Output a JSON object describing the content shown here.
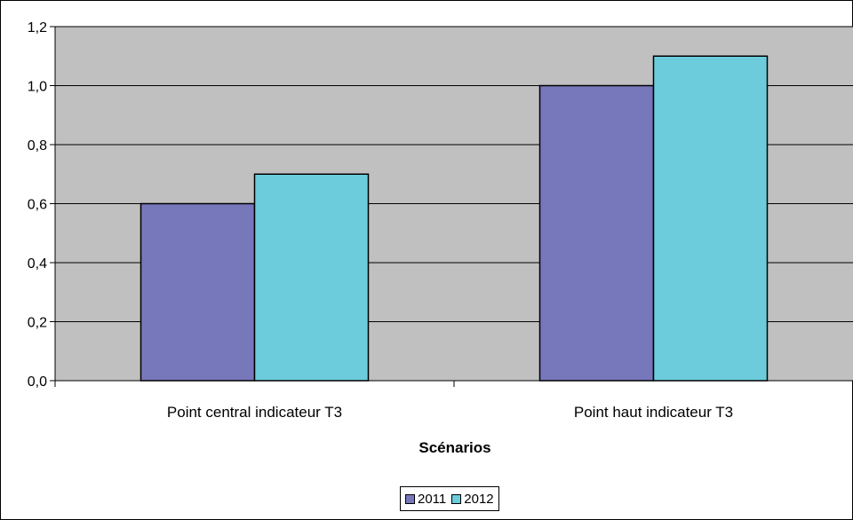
{
  "chart_data": {
    "type": "bar",
    "categories": [
      "Point central indicateur T3",
      "Point haut indicateur T3"
    ],
    "series": [
      {
        "name": "2011",
        "values": [
          0.6,
          1.0
        ],
        "color": "#7777bb"
      },
      {
        "name": "2012",
        "values": [
          0.7,
          1.1
        ],
        "color": "#6cccdc"
      }
    ],
    "title": "",
    "xlabel": "Scénarios",
    "ylabel": "",
    "ylim": [
      0,
      1.2
    ],
    "yticks": [
      "0,0",
      "0,2",
      "0,4",
      "0,6",
      "0,8",
      "1,0",
      "1,2"
    ],
    "grid": true,
    "plot_background": "#c0c0c0",
    "legend_position": "bottom-center"
  }
}
